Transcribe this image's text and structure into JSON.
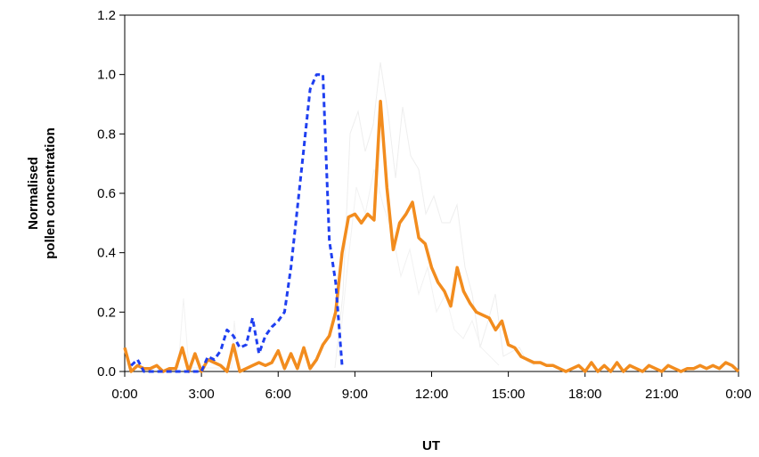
{
  "chart_data": {
    "type": "line",
    "title": "",
    "xlabel": "UT",
    "ylabel_lines": [
      "Normalised",
      "pollen concentration"
    ],
    "xlim": [
      0,
      24
    ],
    "ylim": [
      0,
      1.2
    ],
    "x_ticks": [
      0,
      3,
      6,
      9,
      12,
      15,
      18,
      21,
      24
    ],
    "x_tick_labels": [
      "0:00",
      "3:00",
      "6:00",
      "9:00",
      "12:00",
      "15:00",
      "18:00",
      "21:00",
      "0:00"
    ],
    "y_ticks": [
      0,
      0.2,
      0.4,
      0.6,
      0.8,
      1.0,
      1.2
    ],
    "y_tick_labels": [
      "0.0",
      "0.2",
      "0.4",
      "0.6",
      "0.8",
      "1.0",
      "1.2"
    ],
    "grid": false,
    "legend": "none",
    "series": [
      {
        "color": "#f28c1e",
        "style": "solid",
        "x": [
          0.0,
          0.25,
          0.5,
          0.75,
          1.0,
          1.25,
          1.5,
          1.75,
          2.0,
          2.25,
          2.5,
          2.75,
          3.0,
          3.25,
          3.5,
          3.75,
          4.0,
          4.25,
          4.5,
          4.75,
          5.0,
          5.25,
          5.5,
          5.75,
          6.0,
          6.25,
          6.5,
          6.75,
          7.0,
          7.25,
          7.5,
          7.75,
          8.0,
          8.25,
          8.5,
          8.75,
          9.0,
          9.25,
          9.5,
          9.75,
          10.0,
          10.25,
          10.5,
          10.75,
          11.0,
          11.25,
          11.5,
          11.75,
          12.0,
          12.25,
          12.5,
          12.75,
          13.0,
          13.25,
          13.5,
          13.75,
          14.0,
          14.25,
          14.5,
          14.75,
          15.0,
          15.25,
          15.5,
          15.75,
          16.0,
          16.25,
          16.5,
          16.75,
          17.0,
          17.25,
          17.5,
          17.75,
          18.0,
          18.25,
          18.5,
          18.75,
          19.0,
          19.25,
          19.5,
          19.75,
          20.0,
          20.25,
          20.5,
          20.75,
          21.0,
          21.25,
          21.5,
          21.75,
          22.0,
          22.25,
          22.5,
          22.75,
          23.0,
          23.25,
          23.5,
          23.75,
          24.0
        ],
        "y": [
          0.08,
          0.0,
          0.02,
          0.01,
          0.01,
          0.02,
          0.0,
          0.01,
          0.01,
          0.08,
          0.0,
          0.06,
          0.0,
          0.04,
          0.03,
          0.02,
          0.0,
          0.09,
          0.0,
          0.01,
          0.02,
          0.03,
          0.02,
          0.03,
          0.07,
          0.01,
          0.06,
          0.01,
          0.08,
          0.01,
          0.04,
          0.09,
          0.12,
          0.2,
          0.4,
          0.52,
          0.53,
          0.5,
          0.53,
          0.51,
          0.91,
          0.62,
          0.41,
          0.5,
          0.53,
          0.57,
          0.45,
          0.43,
          0.35,
          0.3,
          0.27,
          0.22,
          0.35,
          0.27,
          0.23,
          0.2,
          0.19,
          0.18,
          0.14,
          0.17,
          0.09,
          0.08,
          0.05,
          0.04,
          0.03,
          0.03,
          0.02,
          0.02,
          0.01,
          0.0,
          0.01,
          0.02,
          0.0,
          0.03,
          0.0,
          0.02,
          0.0,
          0.03,
          0.0,
          0.02,
          0.01,
          0.0,
          0.02,
          0.01,
          0.0,
          0.02,
          0.01,
          0.0,
          0.01,
          0.01,
          0.02,
          0.01,
          0.02,
          0.01,
          0.03,
          0.02,
          0.0
        ]
      },
      {
        "color": "#1f3ff0",
        "style": "dashed",
        "x": [
          0.25,
          0.5,
          0.75,
          1.0,
          1.5,
          2.0,
          2.5,
          3.0,
          3.25,
          3.5,
          3.75,
          4.0,
          4.25,
          4.5,
          4.75,
          5.0,
          5.25,
          5.5,
          5.75,
          6.0,
          6.25,
          6.5,
          6.75,
          7.0,
          7.25,
          7.5,
          7.75,
          8.0,
          8.25,
          8.5
        ],
        "y": [
          0.02,
          0.04,
          0.0,
          0.0,
          0.0,
          0.0,
          0.0,
          0.0,
          0.05,
          0.04,
          0.07,
          0.14,
          0.12,
          0.08,
          0.09,
          0.18,
          0.06,
          0.12,
          0.15,
          0.17,
          0.2,
          0.35,
          0.55,
          0.75,
          0.95,
          1.0,
          1.0,
          0.44,
          0.3,
          0.02
        ]
      }
    ]
  }
}
